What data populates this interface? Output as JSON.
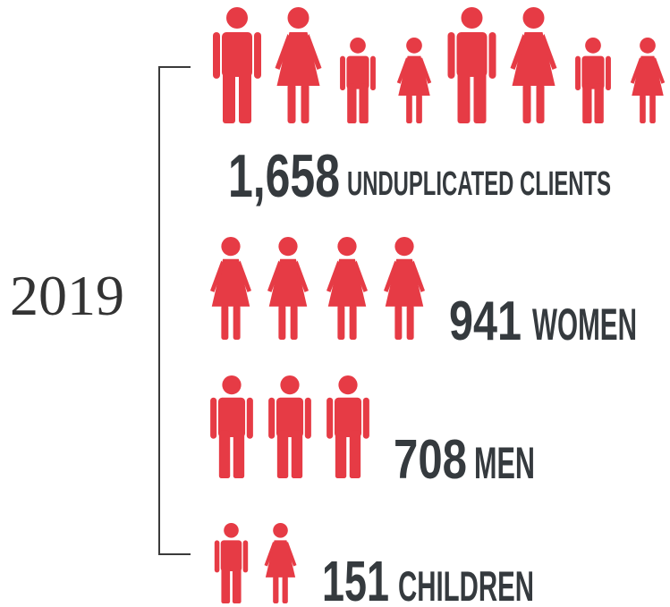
{
  "year": "2019",
  "rows": [
    {
      "number": "1,658",
      "label": "UNDUPLICATED CLIENTS"
    },
    {
      "number": "941",
      "label": "WOMEN"
    },
    {
      "number": "708",
      "label": "MEN"
    },
    {
      "number": "151",
      "label": "CHILDREN"
    }
  ]
}
